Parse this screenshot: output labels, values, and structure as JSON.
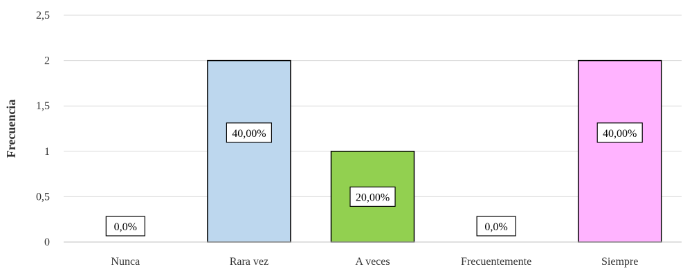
{
  "chart_data": {
    "type": "bar",
    "title": "",
    "xlabel": "",
    "ylabel": "Frecuencia",
    "ylim": [
      0,
      2.5
    ],
    "yticks": [
      0,
      0.5,
      1,
      1.5,
      2,
      2.5
    ],
    "ytick_labels": [
      "0",
      "0,5",
      "1",
      "1,5",
      "2",
      "2,5"
    ],
    "categories": [
      "Nunca",
      "Rara vez",
      "A veces",
      "Frecuentemente",
      "Siempre"
    ],
    "values": [
      0,
      2,
      1,
      0,
      2
    ],
    "data_labels": [
      "0,0%",
      "40,00%",
      "20,00%",
      "0,0%",
      "40,00%"
    ],
    "colors": [
      "#bdd7ee",
      "#bdd7ee",
      "#92d050",
      "#bdd7ee",
      "#ffb3ff"
    ],
    "grid": true,
    "legend": "none",
    "gridline_color": "#d9d9d9"
  }
}
